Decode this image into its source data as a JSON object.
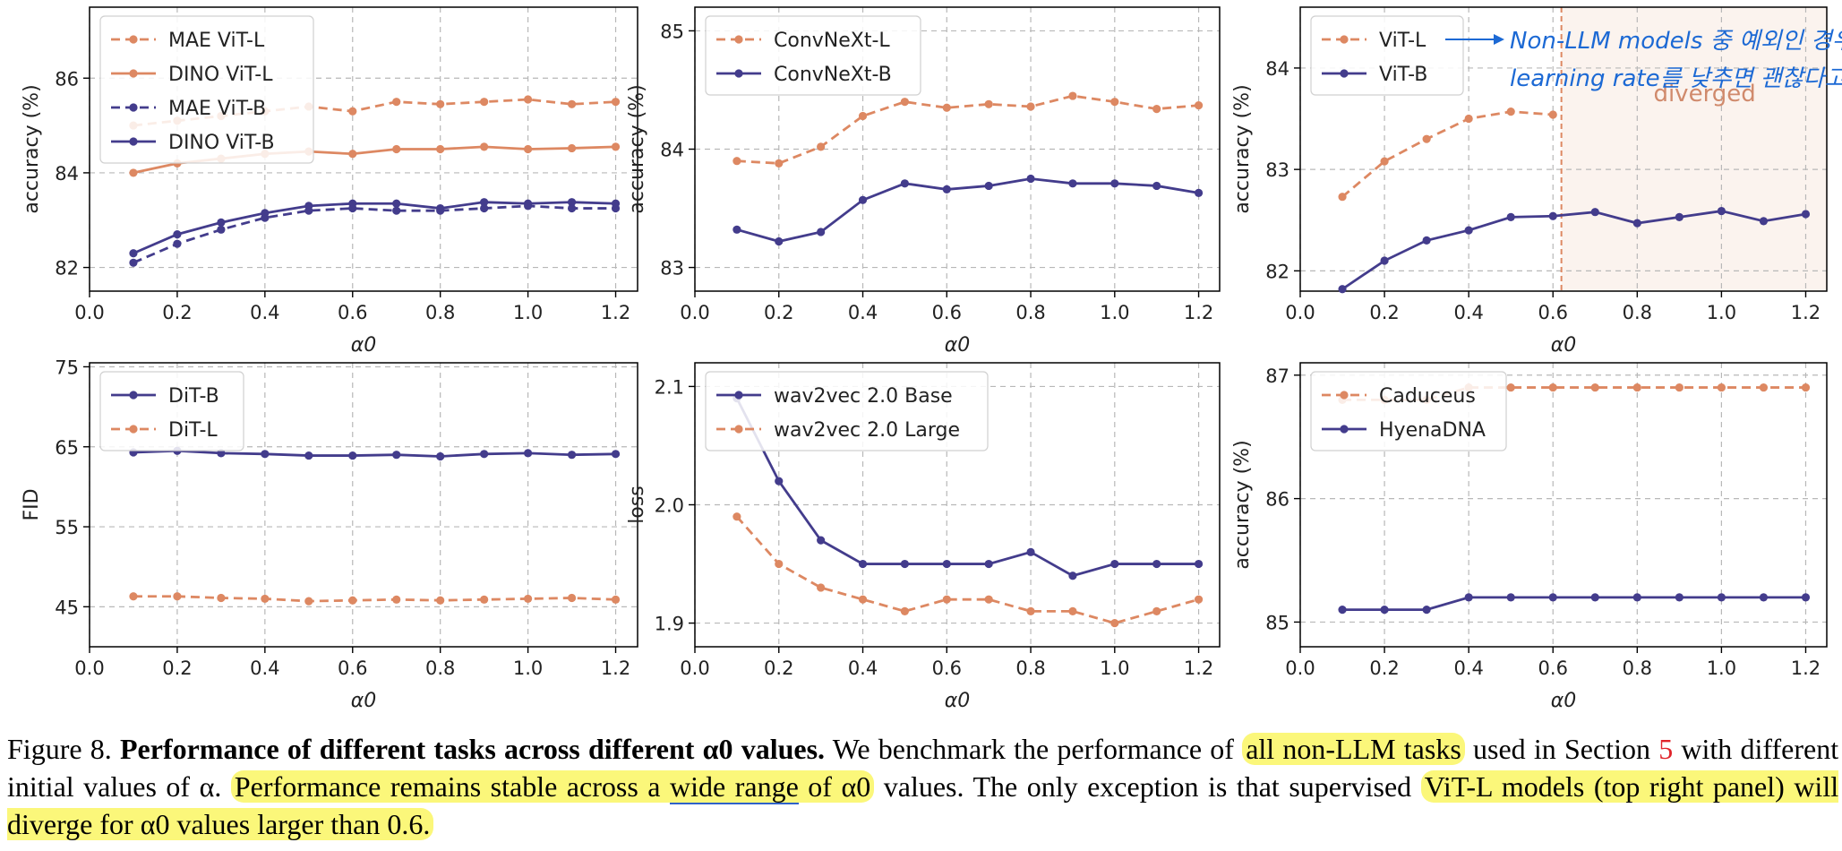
{
  "chart_data": [
    {
      "type": "line",
      "panel": "top-left",
      "xlabel": "α0",
      "ylabel": "accuracy (%)",
      "xlim": [
        0.0,
        1.25
      ],
      "ylim": [
        81.5,
        87.5
      ],
      "xticks": [
        "0.0",
        "0.2",
        "0.4",
        "0.6",
        "0.8",
        "1.0",
        "1.2"
      ],
      "yticks": [
        "82",
        "84",
        "86"
      ],
      "x": [
        0.1,
        0.2,
        0.3,
        0.4,
        0.5,
        0.6,
        0.7,
        0.8,
        0.9,
        1.0,
        1.1,
        1.2
      ],
      "series": [
        {
          "name": "MAE ViT-L",
          "style": "dashed",
          "color": "#dd8862",
          "values": [
            85.0,
            85.1,
            85.2,
            85.3,
            85.4,
            85.3,
            85.5,
            85.45,
            85.5,
            85.55,
            85.45,
            85.5
          ]
        },
        {
          "name": "DINO ViT-L",
          "style": "solid",
          "color": "#dd8862",
          "values": [
            84.0,
            84.2,
            84.3,
            84.4,
            84.45,
            84.4,
            84.5,
            84.5,
            84.55,
            84.5,
            84.52,
            84.55
          ]
        },
        {
          "name": "MAE ViT-B",
          "style": "dashed",
          "color": "#433c8c",
          "values": [
            82.1,
            82.5,
            82.8,
            83.05,
            83.2,
            83.25,
            83.2,
            83.2,
            83.25,
            83.3,
            83.25,
            83.25
          ]
        },
        {
          "name": "DINO ViT-B",
          "style": "solid",
          "color": "#433c8c",
          "values": [
            82.3,
            82.7,
            82.95,
            83.15,
            83.3,
            83.35,
            83.35,
            83.25,
            83.38,
            83.35,
            83.38,
            83.35
          ]
        }
      ]
    },
    {
      "type": "line",
      "panel": "top-middle",
      "xlabel": "α0",
      "ylabel": "accuracy (%)",
      "xlim": [
        0.0,
        1.25
      ],
      "ylim": [
        82.8,
        85.2
      ],
      "xticks": [
        "0.0",
        "0.2",
        "0.4",
        "0.6",
        "0.8",
        "1.0",
        "1.2"
      ],
      "yticks": [
        "83",
        "84",
        "85"
      ],
      "x": [
        0.1,
        0.2,
        0.3,
        0.4,
        0.5,
        0.6,
        0.7,
        0.8,
        0.9,
        1.0,
        1.1,
        1.2
      ],
      "series": [
        {
          "name": "ConvNeXt-L",
          "style": "dashed",
          "color": "#dd8862",
          "values": [
            83.9,
            83.88,
            84.02,
            84.28,
            84.4,
            84.35,
            84.38,
            84.36,
            84.45,
            84.4,
            84.34,
            84.37
          ]
        },
        {
          "name": "ConvNeXt-B",
          "style": "solid",
          "color": "#433c8c",
          "values": [
            83.32,
            83.22,
            83.3,
            83.57,
            83.71,
            83.66,
            83.69,
            83.75,
            83.71,
            83.71,
            83.69,
            83.63
          ]
        }
      ]
    },
    {
      "type": "line",
      "panel": "top-right",
      "xlabel": "α0",
      "ylabel": "accuracy (%)",
      "xlim": [
        0.0,
        1.25
      ],
      "ylim": [
        81.8,
        84.6
      ],
      "xticks": [
        "0.0",
        "0.2",
        "0.4",
        "0.6",
        "0.8",
        "1.0",
        "1.2"
      ],
      "yticks": [
        "82",
        "83",
        "84"
      ],
      "x": [
        0.1,
        0.2,
        0.3,
        0.4,
        0.5,
        0.6,
        0.7,
        0.8,
        0.9,
        1.0,
        1.1,
        1.2
      ],
      "series": [
        {
          "name": "ViT-L",
          "style": "dashed",
          "color": "#dd8862",
          "values": [
            82.73,
            83.08,
            83.3,
            83.5,
            83.57,
            83.54,
            null,
            null,
            null,
            null,
            null,
            null
          ]
        },
        {
          "name": "ViT-B",
          "style": "solid",
          "color": "#433c8c",
          "values": [
            81.82,
            82.1,
            82.3,
            82.4,
            82.53,
            82.54,
            82.58,
            82.47,
            82.53,
            82.59,
            82.49,
            82.56
          ]
        }
      ],
      "divergence_x": 0.62,
      "annotation": "diverged",
      "handwritten_note": [
        "Non-LLM models 중 예외인 경우,",
        "learning rate를 낮추면 괜찮다고 함"
      ]
    },
    {
      "type": "line",
      "panel": "bottom-left",
      "xlabel": "α0",
      "ylabel": "FID",
      "xlim": [
        0.0,
        1.25
      ],
      "ylim": [
        40,
        75.5
      ],
      "xticks": [
        "0.0",
        "0.2",
        "0.4",
        "0.6",
        "0.8",
        "1.0",
        "1.2"
      ],
      "yticks": [
        "45",
        "55",
        "65",
        "75"
      ],
      "x": [
        0.1,
        0.2,
        0.3,
        0.4,
        0.5,
        0.6,
        0.7,
        0.8,
        0.9,
        1.0,
        1.1,
        1.2
      ],
      "series": [
        {
          "name": "DiT-B",
          "style": "solid",
          "color": "#433c8c",
          "values": [
            64.3,
            64.5,
            64.2,
            64.1,
            63.9,
            63.9,
            64.0,
            63.8,
            64.1,
            64.2,
            64.0,
            64.1
          ]
        },
        {
          "name": "DiT-L",
          "style": "dashed",
          "color": "#dd8862",
          "values": [
            46.3,
            46.3,
            46.1,
            46.0,
            45.7,
            45.8,
            45.9,
            45.8,
            45.9,
            46.0,
            46.1,
            45.9
          ]
        }
      ]
    },
    {
      "type": "line",
      "panel": "bottom-middle",
      "xlabel": "α0",
      "ylabel": "loss",
      "xlim": [
        0.0,
        1.25
      ],
      "ylim": [
        1.88,
        2.12
      ],
      "xticks": [
        "0.0",
        "0.2",
        "0.4",
        "0.6",
        "0.8",
        "1.0",
        "1.2"
      ],
      "yticks": [
        "1.9",
        "2.0",
        "2.1"
      ],
      "x": [
        0.1,
        0.2,
        0.3,
        0.4,
        0.5,
        0.6,
        0.7,
        0.8,
        0.9,
        1.0,
        1.1,
        1.2
      ],
      "series": [
        {
          "name": "wav2vec 2.0 Base",
          "style": "solid",
          "color": "#433c8c",
          "values": [
            2.09,
            2.02,
            1.97,
            1.95,
            1.95,
            1.95,
            1.95,
            1.96,
            1.94,
            1.95,
            1.95,
            1.95
          ]
        },
        {
          "name": "wav2vec 2.0 Large",
          "style": "dashed",
          "color": "#dd8862",
          "values": [
            1.99,
            1.95,
            1.93,
            1.92,
            1.91,
            1.92,
            1.92,
            1.91,
            1.91,
            1.9,
            1.91,
            1.92
          ]
        }
      ]
    },
    {
      "type": "line",
      "panel": "bottom-right",
      "xlabel": "α0",
      "ylabel": "accuracy (%)",
      "xlim": [
        0.0,
        1.25
      ],
      "ylim": [
        84.8,
        87.1
      ],
      "xticks": [
        "0.0",
        "0.2",
        "0.4",
        "0.6",
        "0.8",
        "1.0",
        "1.2"
      ],
      "yticks": [
        "85",
        "86",
        "87"
      ],
      "x": [
        0.1,
        0.2,
        0.3,
        0.4,
        0.5,
        0.6,
        0.7,
        0.8,
        0.9,
        1.0,
        1.1,
        1.2
      ],
      "series": [
        {
          "name": "Caduceus",
          "style": "dashed",
          "color": "#dd8862",
          "values": [
            86.8,
            86.8,
            86.8,
            86.9,
            86.9,
            86.9,
            86.9,
            86.9,
            86.9,
            86.9,
            86.9,
            86.9
          ]
        },
        {
          "name": "HyenaDNA",
          "style": "solid",
          "color": "#433c8c",
          "values": [
            85.1,
            85.1,
            85.1,
            85.2,
            85.2,
            85.2,
            85.2,
            85.2,
            85.2,
            85.2,
            85.2,
            85.2
          ]
        }
      ]
    }
  ],
  "caption": {
    "figure_label": "Figure 8.",
    "title": "Performance of different tasks across different α0 values.",
    "s1_a": "We benchmark the performance of",
    "s1_hl": "all non-LLM tasks",
    "s1_b": "used in Section",
    "s1_ref": "5",
    "s1_c": "with different initial values of α.",
    "s2_a": "Performance remains stable across a",
    "s2_ul": "wide range",
    "s2_b": "of α0",
    "s2_c": "values.",
    "s3_a": "The only exception is that supervised",
    "s3_hl": "ViT-L models (top right panel) will diverge for α0 values larger than 0.6."
  }
}
